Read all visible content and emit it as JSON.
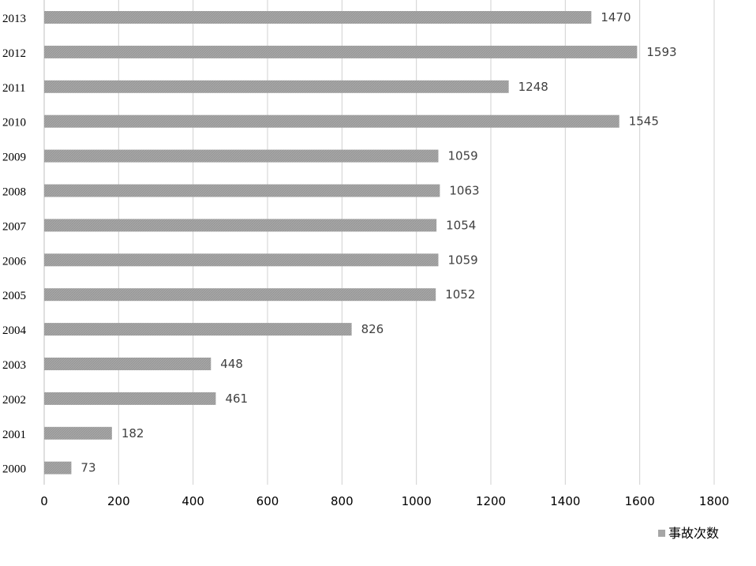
{
  "chart_data": {
    "type": "bar",
    "orientation": "horizontal",
    "categories": [
      "2013",
      "2012",
      "2011",
      "2010",
      "2009",
      "2008",
      "2007",
      "2006",
      "2005",
      "2004",
      "2003",
      "2002",
      "2001",
      "2000"
    ],
    "series": [
      {
        "name": "事故次数",
        "values": [
          1470,
          1593,
          1248,
          1545,
          1059,
          1063,
          1054,
          1059,
          1052,
          826,
          448,
          461,
          182,
          73
        ]
      }
    ],
    "data_labels": [
      "1470",
      "1593",
      "1248",
      "1545",
      "1059",
      "1063",
      "1054",
      "1059",
      "1052",
      "826",
      "448",
      "461",
      "182",
      "73"
    ],
    "xlim": [
      0,
      1800
    ],
    "xticks": [
      "0",
      "200",
      "400",
      "600",
      "800",
      "1000",
      "1200",
      "1400",
      "1600",
      "1800"
    ],
    "grid": true,
    "legend_position": "bottom-right",
    "bar_color": "#a6a6a6",
    "title": "",
    "xlabel": "",
    "ylabel": ""
  }
}
